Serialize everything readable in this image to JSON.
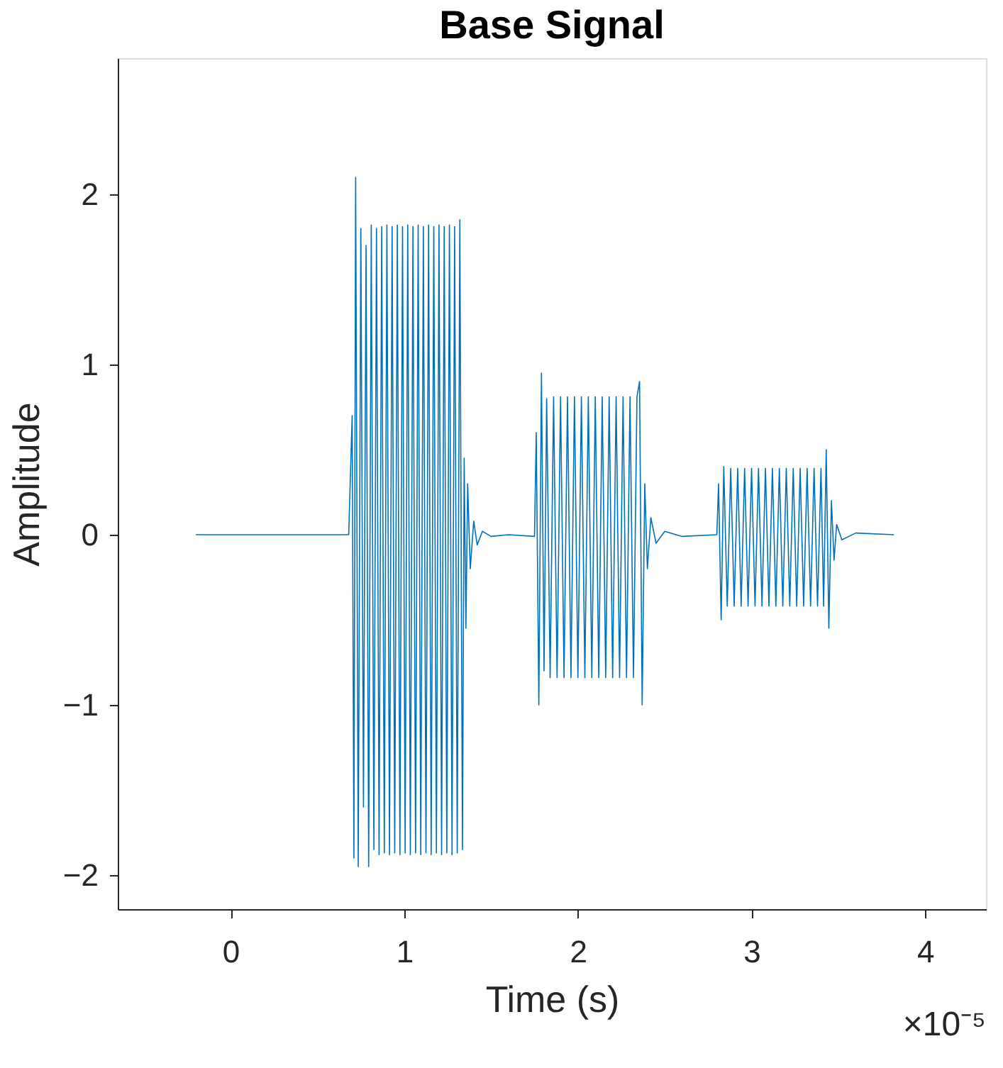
{
  "chart_data": {
    "type": "line",
    "title": "Base Signal",
    "xlabel": "Time (s)",
    "ylabel": "Amplitude",
    "annotations": [
      "×10⁻⁵"
    ],
    "xlim": [
      -0.65,
      4.35
    ],
    "xticks": [
      0,
      1,
      2,
      3,
      4
    ],
    "ylim": [
      -2.2,
      2.8
    ],
    "yticks": [
      -2,
      -1,
      0,
      1,
      2
    ],
    "grid": false,
    "marker": "none",
    "line_style": "solid",
    "series": [
      {
        "color": "#0072bd",
        "x": [
          -0.2,
          0.3,
          0.68,
          0.7,
          0.71,
          0.72,
          0.735,
          0.75,
          0.765,
          0.78,
          0.795,
          0.81,
          0.825,
          0.84,
          0.855,
          0.87,
          0.885,
          0.9,
          0.915,
          0.93,
          0.945,
          0.96,
          0.975,
          0.99,
          1.005,
          1.02,
          1.035,
          1.05,
          1.065,
          1.08,
          1.095,
          1.11,
          1.125,
          1.14,
          1.155,
          1.17,
          1.185,
          1.2,
          1.215,
          1.23,
          1.245,
          1.26,
          1.275,
          1.29,
          1.305,
          1.32,
          1.335,
          1.345,
          1.355,
          1.365,
          1.38,
          1.4,
          1.42,
          1.45,
          1.5,
          1.6,
          1.75,
          1.76,
          1.775,
          1.79,
          1.805,
          1.82,
          1.84,
          1.86,
          1.88,
          1.9,
          1.92,
          1.94,
          1.96,
          1.98,
          2.0,
          2.02,
          2.04,
          2.06,
          2.08,
          2.1,
          2.12,
          2.14,
          2.16,
          2.18,
          2.2,
          2.22,
          2.24,
          2.26,
          2.28,
          2.3,
          2.32,
          2.34,
          2.355,
          2.37,
          2.385,
          2.4,
          2.42,
          2.45,
          2.5,
          2.6,
          2.8,
          2.81,
          2.825,
          2.84,
          2.86,
          2.88,
          2.9,
          2.92,
          2.94,
          2.96,
          2.98,
          3.0,
          3.02,
          3.04,
          3.06,
          3.08,
          3.1,
          3.12,
          3.14,
          3.16,
          3.18,
          3.2,
          3.22,
          3.24,
          3.26,
          3.28,
          3.3,
          3.32,
          3.34,
          3.36,
          3.38,
          3.4,
          3.415,
          3.43,
          3.445,
          3.46,
          3.475,
          3.49,
          3.52,
          3.6,
          3.82
        ],
        "values": [
          0,
          0,
          0,
          0.7,
          -1.9,
          2.1,
          -1.95,
          1.8,
          -1.6,
          1.7,
          -1.95,
          1.82,
          -1.85,
          1.8,
          -1.88,
          1.81,
          -1.87,
          1.82,
          -1.88,
          1.81,
          -1.87,
          1.82,
          -1.88,
          1.81,
          -1.87,
          1.82,
          -1.88,
          1.81,
          -1.87,
          1.82,
          -1.88,
          1.81,
          -1.87,
          1.82,
          -1.88,
          1.81,
          -1.87,
          1.82,
          -1.88,
          1.81,
          -1.87,
          1.82,
          -1.88,
          1.81,
          -1.87,
          1.85,
          -1.85,
          0.45,
          -0.55,
          0.3,
          -0.2,
          0.08,
          -0.06,
          0.02,
          -0.01,
          0,
          -0.01,
          0.6,
          -1.0,
          0.95,
          -0.8,
          0.8,
          -0.84,
          0.81,
          -0.84,
          0.81,
          -0.84,
          0.81,
          -0.84,
          0.81,
          -0.84,
          0.81,
          -0.84,
          0.81,
          -0.84,
          0.81,
          -0.84,
          0.81,
          -0.84,
          0.81,
          -0.84,
          0.81,
          -0.84,
          0.81,
          -0.84,
          0.81,
          -0.84,
          0.81,
          0.9,
          -1.0,
          0.3,
          -0.2,
          0.1,
          -0.05,
          0.02,
          -0.01,
          0,
          0.3,
          -0.5,
          0.4,
          -0.42,
          0.39,
          -0.42,
          0.39,
          -0.42,
          0.39,
          -0.42,
          0.39,
          -0.42,
          0.39,
          -0.42,
          0.39,
          -0.42,
          0.39,
          -0.42,
          0.39,
          -0.42,
          0.39,
          -0.42,
          0.39,
          -0.42,
          0.39,
          -0.42,
          0.39,
          -0.42,
          0.39,
          -0.42,
          0.39,
          -0.42,
          0.5,
          -0.55,
          0.2,
          -0.15,
          0.06,
          -0.03,
          0.01,
          0
        ]
      }
    ]
  }
}
